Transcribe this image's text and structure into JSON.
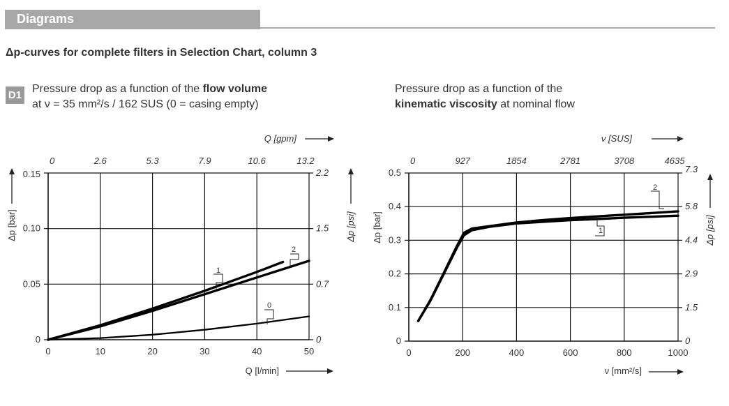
{
  "header": {
    "title": "Diagrams"
  },
  "section_title": "Δp-curves for complete filters in Selection Chart, column 3",
  "badge": "D1",
  "left_caption": {
    "line1_a": "Pressure drop as a function of the ",
    "line1_b": "flow volume",
    "line2": "at ν = 35 mm²/s / 162 SUS (0 = casing empty)"
  },
  "right_caption": {
    "line1": "Pressure drop as a function of the",
    "line2_a": "kinematic viscosity",
    "line2_b": " at nominal flow"
  },
  "chart_data": [
    {
      "type": "line",
      "xlabel": "Q [l/min]",
      "x2label": "Q [gpm]",
      "ylabel": "Δp [bar]",
      "y2label": "Δp [psi]",
      "xlim": [
        0,
        50
      ],
      "ylim": [
        0,
        0.15
      ],
      "x_ticks": [
        "0",
        "10",
        "20",
        "30",
        "40",
        "50"
      ],
      "x2_ticks": [
        "0",
        "2.6",
        "5.3",
        "7.9",
        "10.6",
        "13.2"
      ],
      "y_ticks": [
        "0",
        "0.05",
        "0.10",
        "0.15"
      ],
      "y2_ticks": [
        "0",
        "0.7",
        "1.5",
        "2.2"
      ],
      "grid": true,
      "series": [
        {
          "name": "1",
          "x": [
            0,
            10,
            20,
            30,
            40,
            45
          ],
          "y": [
            0,
            0.013,
            0.028,
            0.044,
            0.061,
            0.07
          ]
        },
        {
          "name": "2",
          "x": [
            0,
            10,
            20,
            30,
            40,
            50
          ],
          "y": [
            0,
            0.012,
            0.026,
            0.041,
            0.056,
            0.071
          ]
        },
        {
          "name": "0",
          "x": [
            0,
            10,
            20,
            30,
            40,
            50
          ],
          "y": [
            0,
            0.0015,
            0.0045,
            0.009,
            0.0145,
            0.021
          ]
        }
      ]
    },
    {
      "type": "line",
      "xlabel": "ν [mm²/s]",
      "x2label": "ν [SUS]",
      "ylabel": "Δp [bar]",
      "y2label": "Δp [psi]",
      "xlim": [
        0,
        1000
      ],
      "ylim": [
        0,
        0.5
      ],
      "x_ticks": [
        "0",
        "200",
        "400",
        "600",
        "800",
        "1000"
      ],
      "x2_ticks": [
        "0",
        "927",
        "1854",
        "2781",
        "3708",
        "4635"
      ],
      "y_ticks": [
        "0",
        "0.1",
        "0.2",
        "0.3",
        "0.4",
        "0.5"
      ],
      "y2_ticks": [
        "0",
        "1.5",
        "2.9",
        "4.4",
        "5.8",
        "7.3"
      ],
      "grid": true,
      "series": [
        {
          "name": "1",
          "x": [
            35,
            80,
            130,
            180,
            205,
            235,
            300,
            400,
            500,
            600,
            700,
            800,
            900,
            1000
          ],
          "y": [
            0.06,
            0.12,
            0.2,
            0.28,
            0.315,
            0.33,
            0.34,
            0.35,
            0.355,
            0.36,
            0.363,
            0.367,
            0.37,
            0.373
          ]
        },
        {
          "name": "2",
          "x": [
            35,
            80,
            130,
            180,
            205,
            235,
            300,
            400,
            500,
            600,
            700,
            800,
            900,
            1000
          ],
          "y": [
            0.06,
            0.122,
            0.203,
            0.285,
            0.322,
            0.335,
            0.342,
            0.353,
            0.36,
            0.366,
            0.371,
            0.376,
            0.381,
            0.386
          ]
        }
      ]
    }
  ]
}
